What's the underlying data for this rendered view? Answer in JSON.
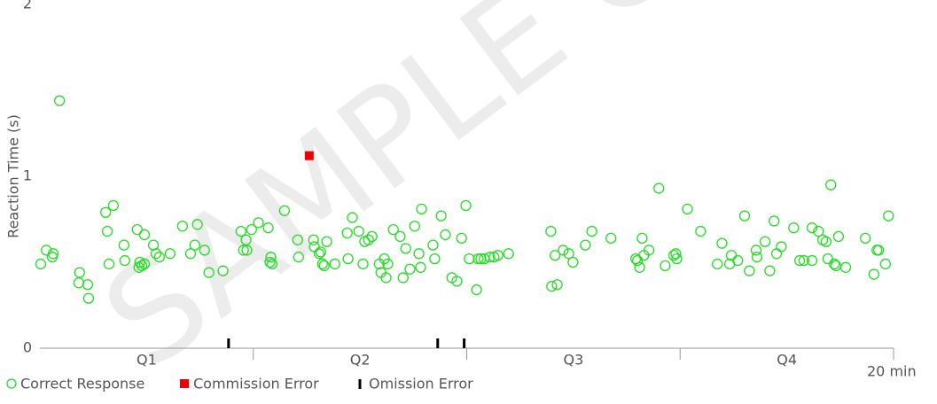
{
  "chart_data": {
    "type": "scatter",
    "watermark": "SAMPLE C",
    "ylabel": "Reaction Time (s)",
    "xlim": [
      0,
      20
    ],
    "ylim": [
      0,
      2
    ],
    "yticks": [
      0,
      1,
      2
    ],
    "xticks": [
      {
        "value": 2.5,
        "label": "Q1"
      },
      {
        "value": 7.5,
        "label": "Q2"
      },
      {
        "value": 12.5,
        "label": "Q3"
      },
      {
        "value": 17.5,
        "label": "Q4"
      },
      {
        "value": 20,
        "label": "20 min"
      }
    ],
    "quarter_ticks": [
      5,
      10,
      15,
      20
    ],
    "series": [
      {
        "name": "Correct Response",
        "color": "#22dd22",
        "marker": "circle",
        "x": [
          0.02,
          0.15,
          0.29,
          0.31,
          0.46,
          0.93,
          0.91,
          1.12,
          1.14,
          1.54,
          1.72,
          1.58,
          1.62,
          1.97,
          1.99,
          2.28,
          2.45,
          2.34,
          2.39,
          2.45,
          2.32,
          2.66,
          2.72,
          2.8,
          3.05,
          3.34,
          3.53,
          3.63,
          3.69,
          3.86,
          3.96,
          4.29,
          4.71,
          4.83,
          4.77,
          4.85,
          4.96,
          5.12,
          5.35,
          5.41,
          5.44,
          5.39,
          5.73,
          6.04,
          6.06,
          6.41,
          6.43,
          6.54,
          6.58,
          6.62,
          6.66,
          6.72,
          6.91,
          7.2,
          7.22,
          7.32,
          7.47,
          7.61,
          7.7,
          7.78,
          7.57,
          7.95,
          7.99,
          8.07,
          8.11,
          8.15,
          8.28,
          8.44,
          8.51,
          8.57,
          8.67,
          8.78,
          8.88,
          8.94,
          8.92,
          9.21,
          9.25,
          9.4,
          9.5,
          9.65,
          9.77,
          9.88,
          9.98,
          10.06,
          10.23,
          10.27,
          10.33,
          10.41,
          10.54,
          10.64,
          10.73,
          10.98,
          11.97,
          12.07,
          11.99,
          12.12,
          12.26,
          12.39,
          12.49,
          12.78,
          12.93,
          13.38,
          13.96,
          14.0,
          14.05,
          14.11,
          14.15,
          14.27,
          14.5,
          14.65,
          14.85,
          14.9,
          14.92,
          15.17,
          15.48,
          15.87,
          15.98,
          16.16,
          16.2,
          16.35,
          16.51,
          16.62,
          16.78,
          16.8,
          16.99,
          17.1,
          17.2,
          17.26,
          17.37,
          17.66,
          17.8,
          17.9,
          18.09,
          18.09,
          18.24,
          18.34,
          18.42,
          18.46,
          18.53,
          18.61,
          18.65,
          18.71,
          18.88,
          19.34,
          19.54,
          19.61,
          19.65,
          19.81,
          19.88
        ],
        "values": [
          0.49,
          0.57,
          0.53,
          0.55,
          1.44,
          0.44,
          0.38,
          0.37,
          0.29,
          0.79,
          0.83,
          0.68,
          0.49,
          0.6,
          0.51,
          0.69,
          0.66,
          0.5,
          0.48,
          0.49,
          0.47,
          0.6,
          0.55,
          0.53,
          0.55,
          0.71,
          0.55,
          0.6,
          0.72,
          0.57,
          0.44,
          0.45,
          0.68,
          0.63,
          0.57,
          0.57,
          0.69,
          0.73,
          0.7,
          0.53,
          0.49,
          0.5,
          0.8,
          0.63,
          0.53,
          0.63,
          0.59,
          0.55,
          0.56,
          0.49,
          0.48,
          0.62,
          0.49,
          0.67,
          0.52,
          0.76,
          0.68,
          0.62,
          0.63,
          0.65,
          0.49,
          0.49,
          0.44,
          0.52,
          0.41,
          0.49,
          0.69,
          0.65,
          0.41,
          0.58,
          0.46,
          0.71,
          0.55,
          0.81,
          0.47,
          0.6,
          0.52,
          0.77,
          0.66,
          0.41,
          0.39,
          0.64,
          0.83,
          0.52,
          0.34,
          0.52,
          0.52,
          0.52,
          0.53,
          0.53,
          0.54,
          0.55,
          0.68,
          0.54,
          0.36,
          0.37,
          0.57,
          0.55,
          0.5,
          0.6,
          0.68,
          0.64,
          0.52,
          0.51,
          0.47,
          0.64,
          0.54,
          0.57,
          0.93,
          0.48,
          0.54,
          0.55,
          0.52,
          0.81,
          0.68,
          0.49,
          0.61,
          0.49,
          0.54,
          0.51,
          0.77,
          0.45,
          0.57,
          0.53,
          0.62,
          0.45,
          0.74,
          0.55,
          0.59,
          0.7,
          0.51,
          0.51,
          0.51,
          0.7,
          0.68,
          0.63,
          0.62,
          0.52,
          0.95,
          0.49,
          0.48,
          0.65,
          0.47,
          0.64,
          0.43,
          0.57,
          0.57,
          0.49,
          0.77
        ]
      },
      {
        "name": "Commission Error",
        "color": "#ee0000",
        "marker": "square",
        "x": [
          6.31
        ],
        "values": [
          1.12
        ]
      },
      {
        "name": "Omission Error",
        "color": "#000000",
        "marker": "bar",
        "x": [
          4.42,
          9.32,
          9.94
        ],
        "values": [
          0,
          0,
          0
        ]
      }
    ]
  }
}
